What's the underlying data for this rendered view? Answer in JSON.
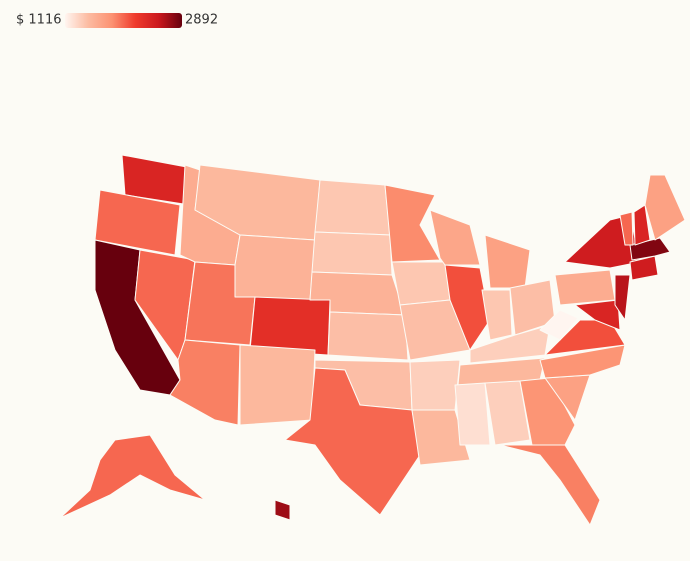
{
  "chart_data": {
    "type": "choropleth",
    "colorscale": {
      "min": {
        "value": 1116,
        "label": "$ 1116"
      },
      "max": 2892,
      "colors": [
        "#fff5f0",
        "#fcbba1",
        "#fc9272",
        "#ef3b2c",
        "#cb181d",
        "#67000d"
      ]
    },
    "values": [
      2400,
      2000,
      2892,
      2000,
      1600,
      1500,
      1550,
      1950,
      2300,
      1900,
      1500,
      1400,
      1400,
      1550,
      1450,
      1450,
      2000,
      1850,
      1400,
      1450,
      1350,
      1500,
      1650,
      2100,
      1700,
      1400,
      1450,
      1350,
      1500,
      1250,
      1350,
      1800,
      1900,
      1700,
      1800,
      2100,
      1116,
      1600,
      2500,
      2400,
      2600,
      2500,
      2800,
      2000,
      2400,
      1700,
      2000,
      2700
    ]
  }
}
